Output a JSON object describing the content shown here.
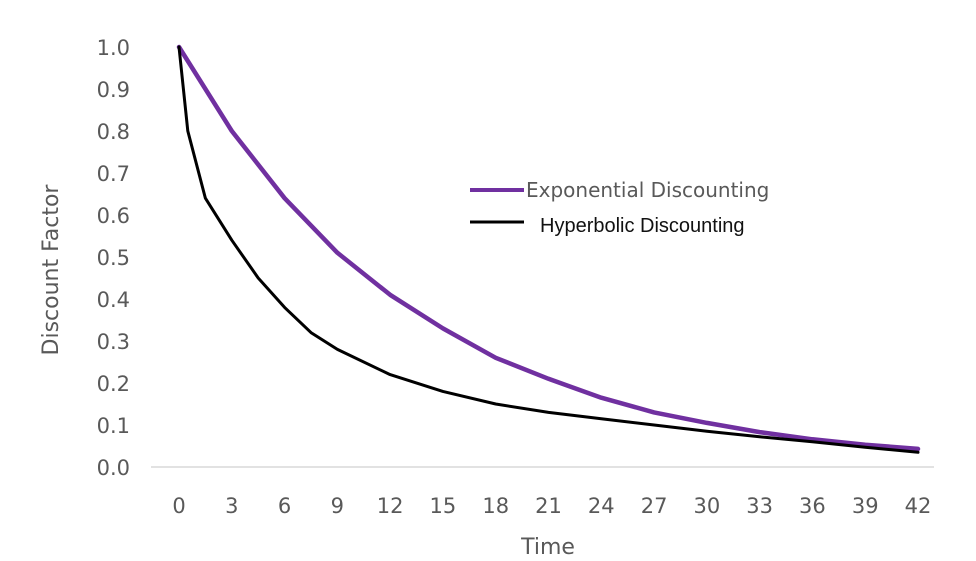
{
  "chart_data": {
    "type": "line",
    "title": "",
    "xlabel": "Time",
    "ylabel": "Discount Factor",
    "xlim": [
      0,
      42
    ],
    "ylim": [
      0,
      1.0
    ],
    "x_ticks": [
      "0",
      "3",
      "6",
      "9",
      "12",
      "15",
      "18",
      "21",
      "24",
      "27",
      "30",
      "33",
      "36",
      "39",
      "42"
    ],
    "y_ticks": [
      "0.0",
      "0.1",
      "0.2",
      "0.3",
      "0.4",
      "0.5",
      "0.6",
      "0.7",
      "0.8",
      "0.9",
      "1.0"
    ],
    "grid": false,
    "legend_position": "center-right",
    "series": [
      {
        "name": "Exponential Discounting",
        "color": "#7030A0",
        "x": [
          0,
          3,
          6,
          9,
          12,
          15,
          18,
          21,
          24,
          27,
          30,
          33,
          36,
          39,
          42
        ],
        "values": [
          1.0,
          0.8,
          0.64,
          0.51,
          0.41,
          0.33,
          0.26,
          0.21,
          0.165,
          0.13,
          0.105,
          0.083,
          0.066,
          0.053,
          0.043
        ]
      },
      {
        "name": "Hyperbolic Discounting",
        "color": "#000000",
        "x": [
          0,
          0.5,
          1.5,
          3,
          4.5,
          6,
          7.5,
          9,
          12,
          15,
          18,
          21,
          24,
          27,
          30,
          33,
          36,
          39,
          42
        ],
        "values": [
          1.0,
          0.8,
          0.64,
          0.54,
          0.45,
          0.38,
          0.32,
          0.28,
          0.22,
          0.18,
          0.15,
          0.13,
          0.115,
          0.1,
          0.085,
          0.072,
          0.06,
          0.047,
          0.035
        ]
      }
    ]
  }
}
